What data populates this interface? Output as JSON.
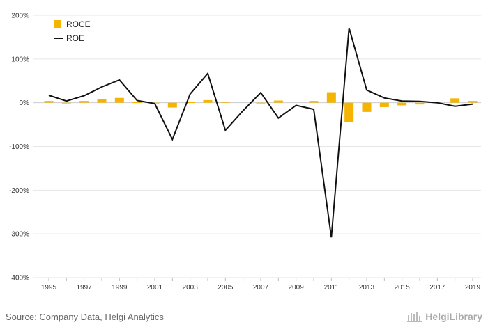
{
  "chart_data": {
    "type": "bar",
    "title": "",
    "xlabel": "",
    "ylabel": "",
    "ylim": [
      -400,
      200
    ],
    "y_ticks": [
      "200%",
      "100%",
      "0%",
      "-100%",
      "-200%",
      "-300%",
      "-400%"
    ],
    "y_tick_values": [
      200,
      100,
      0,
      -100,
      -200,
      -300,
      -400
    ],
    "categories": [
      "1995",
      "1996",
      "1997",
      "1998",
      "1999",
      "2000",
      "2001",
      "2002",
      "2003",
      "2004",
      "2005",
      "2006",
      "2007",
      "2008",
      "2009",
      "2010",
      "2011",
      "2012",
      "2013",
      "2014",
      "2015",
      "2016",
      "2017",
      "2018",
      "2019"
    ],
    "x_tick_labels": [
      "1995",
      "1997",
      "1999",
      "2001",
      "2003",
      "2005",
      "2007",
      "2009",
      "2011",
      "2013",
      "2015",
      "2017",
      "2019"
    ],
    "series": [
      {
        "name": "ROCE",
        "kind": "bar",
        "color": "#f5b400",
        "values": [
          4,
          -1,
          4,
          9,
          11,
          1,
          -1,
          -11,
          1,
          6,
          2,
          0,
          -1,
          5,
          0,
          4,
          24,
          -45,
          -21,
          -10,
          -6,
          -4,
          0,
          10,
          4
        ]
      },
      {
        "name": "ROE",
        "kind": "line",
        "color": "#111111",
        "values": [
          17,
          4,
          16,
          36,
          52,
          5,
          -2,
          -84,
          20,
          67,
          -63,
          -18,
          23,
          -35,
          -6,
          -15,
          -308,
          171,
          29,
          11,
          4,
          3,
          0,
          -8,
          -3
        ]
      }
    ],
    "legend": {
      "position": "top-left",
      "entries": [
        "ROCE",
        "ROE"
      ]
    },
    "grid": true
  },
  "footer": {
    "source": "Source: Company Data, Helgi Analytics",
    "brand": "HelgiLibrary"
  }
}
